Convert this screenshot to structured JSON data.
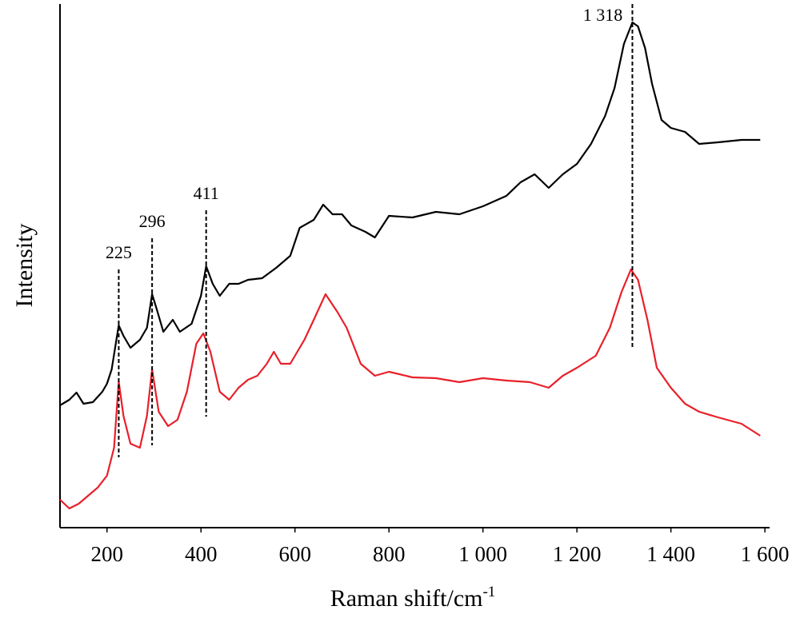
{
  "chart_data": {
    "type": "line",
    "xlabel": {
      "text": "Raman shift/cm",
      "superscript": "-1"
    },
    "ylabel": "Intensity",
    "xlim": [
      100,
      1610
    ],
    "ylim": [
      0,
      655
    ],
    "xticks": [
      200,
      400,
      600,
      800,
      {
        "value": 1000,
        "label": "1 000"
      },
      {
        "value": 1200,
        "label": "1 200"
      },
      {
        "value": 1400,
        "label": "1 400"
      },
      {
        "value": 1600,
        "label": "1 600"
      }
    ],
    "series": [
      {
        "color": "#000000",
        "x": [
          100,
          120,
          135,
          150,
          170,
          190,
          200,
          210,
          220,
          225,
          235,
          250,
          270,
          285,
          296,
          305,
          320,
          340,
          355,
          380,
          400,
          411,
          425,
          440,
          460,
          480,
          500,
          530,
          560,
          590,
          610,
          640,
          660,
          680,
          700,
          720,
          750,
          770,
          800,
          850,
          900,
          950,
          1000,
          1050,
          1080,
          1110,
          1140,
          1170,
          1200,
          1230,
          1260,
          1280,
          1300,
          1318,
          1330,
          1345,
          1360,
          1380,
          1400,
          1430,
          1460,
          1500,
          1550,
          1590
        ],
        "values": [
          153,
          160,
          169,
          155,
          157,
          170,
          180,
          198,
          235,
          253,
          240,
          225,
          235,
          250,
          292,
          275,
          245,
          260,
          245,
          255,
          290,
          327,
          305,
          290,
          305,
          305,
          310,
          312,
          325,
          340,
          375,
          385,
          404,
          392,
          392,
          378,
          370,
          363,
          390,
          388,
          395,
          392,
          402,
          415,
          432,
          442,
          425,
          442,
          455,
          480,
          515,
          550,
          605,
          632,
          627,
          600,
          555,
          510,
          500,
          495,
          480,
          482,
          485,
          485
        ]
      },
      {
        "color": "#e8202a",
        "x": [
          100,
          120,
          140,
          160,
          180,
          200,
          215,
          225,
          235,
          250,
          270,
          285,
          296,
          310,
          330,
          350,
          370,
          390,
          405,
          420,
          440,
          460,
          480,
          500,
          520,
          540,
          555,
          570,
          590,
          620,
          640,
          665,
          690,
          710,
          740,
          770,
          800,
          850,
          900,
          950,
          1000,
          1050,
          1100,
          1140,
          1170,
          1200,
          1240,
          1270,
          1295,
          1315,
          1330,
          1350,
          1370,
          1400,
          1430,
          1460,
          1500,
          1550,
          1590
        ],
        "values": [
          35,
          24,
          30,
          40,
          50,
          65,
          100,
          183,
          140,
          105,
          100,
          140,
          198,
          145,
          127,
          135,
          170,
          230,
          243,
          220,
          170,
          160,
          175,
          185,
          190,
          205,
          220,
          205,
          205,
          235,
          260,
          292,
          270,
          250,
          205,
          190,
          195,
          188,
          187,
          182,
          187,
          184,
          182,
          175,
          190,
          200,
          215,
          250,
          295,
          323,
          310,
          260,
          200,
          175,
          155,
          145,
          138,
          130,
          115
        ]
      }
    ],
    "annotations": [
      225,
      296,
      411,
      {
        "value": 1318,
        "label": "1 318"
      }
    ]
  }
}
